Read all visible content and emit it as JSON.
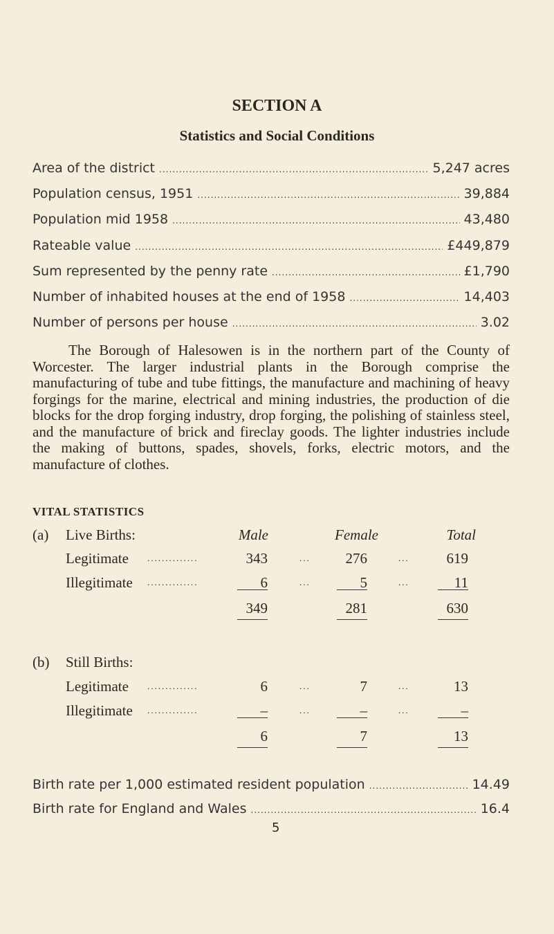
{
  "heading": "SECTION A",
  "subheading": "Statistics and Social Conditions",
  "stats": [
    {
      "label": "Area of the district",
      "value": "5,247 acres"
    },
    {
      "label": "Population census, 1951",
      "value": "39,884"
    },
    {
      "label": "Population mid 1958",
      "value": "43,480"
    },
    {
      "label": "Rateable value",
      "value": "£449,879"
    },
    {
      "label": "Sum represented by the penny rate",
      "value": "£1,790"
    },
    {
      "label": "Number of inhabited houses at the end of 1958",
      "value": "14,403"
    },
    {
      "label": "Number of persons per house",
      "value": "3.02"
    }
  ],
  "paragraph": "The Borough of Halesowen is in the northern part of the County of Worcester. The larger industrial plants in the Borough comprise the manufacturing of tube and tube fittings, the manufacture and machining of heavy forgings for the marine, electrical and mining industries, the production of die blocks for the drop forging industry, drop forging, the polishing of stainless steel, and the manufacture of brick and fireclay goods. The lighter industries include the making of buttons, spades, shovels, forks, electric motors, and the manufacture of clothes.",
  "vital": {
    "title": "VITAL STATISTICS",
    "columns": [
      "Male",
      "Female",
      "Total"
    ],
    "live": {
      "marker": "(a)",
      "label": "Live Births:",
      "rows": [
        {
          "label": "Legitimate",
          "values": [
            "343",
            "276",
            "619"
          ]
        },
        {
          "label": "Illegitimate",
          "values": [
            "6",
            "5",
            "11"
          ]
        }
      ],
      "totals": [
        "349",
        "281",
        "630"
      ]
    },
    "still": {
      "marker": "(b)",
      "label": "Still Births:",
      "rows": [
        {
          "label": "Legitimate",
          "values": [
            "6",
            "7",
            "13"
          ]
        },
        {
          "label": "Illegitimate",
          "values": [
            "–",
            "–",
            "–"
          ]
        }
      ],
      "totals": [
        "6",
        "7",
        "13"
      ]
    },
    "separator": "..."
  },
  "rates": [
    {
      "label": "Birth rate per 1,000 estimated resident population",
      "value": "14.49"
    },
    {
      "label": "Birth rate for England and Wales",
      "value": "16.4"
    }
  ],
  "page_number": "5"
}
